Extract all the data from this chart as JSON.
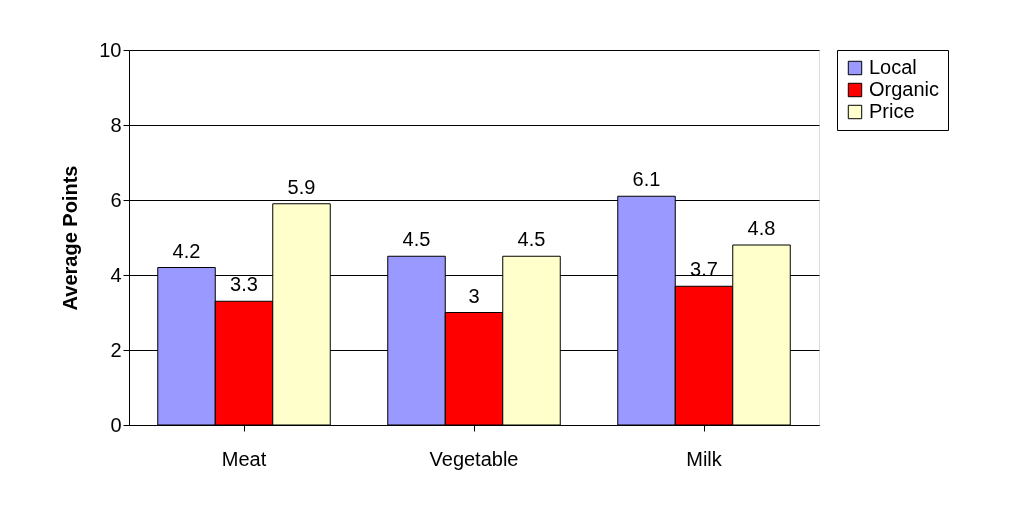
{
  "chart_data": {
    "type": "bar",
    "ylabel": "Average Points",
    "categories": [
      "Meat",
      "Vegetable",
      "Milk"
    ],
    "series": [
      {
        "name": "Local",
        "color": "#9999ff",
        "values": [
          4.2,
          4.5,
          6.1
        ]
      },
      {
        "name": "Organic",
        "color": "#ff0000",
        "values": [
          3.3,
          3,
          3.7
        ]
      },
      {
        "name": "Price",
        "color": "#ffffcc",
        "values": [
          5.9,
          4.5,
          4.8
        ]
      }
    ],
    "ylim": [
      0,
      10
    ],
    "yticks": [
      0,
      2,
      4,
      6,
      8,
      10
    ],
    "grid": "y",
    "legend": "right",
    "data_labels": true
  }
}
